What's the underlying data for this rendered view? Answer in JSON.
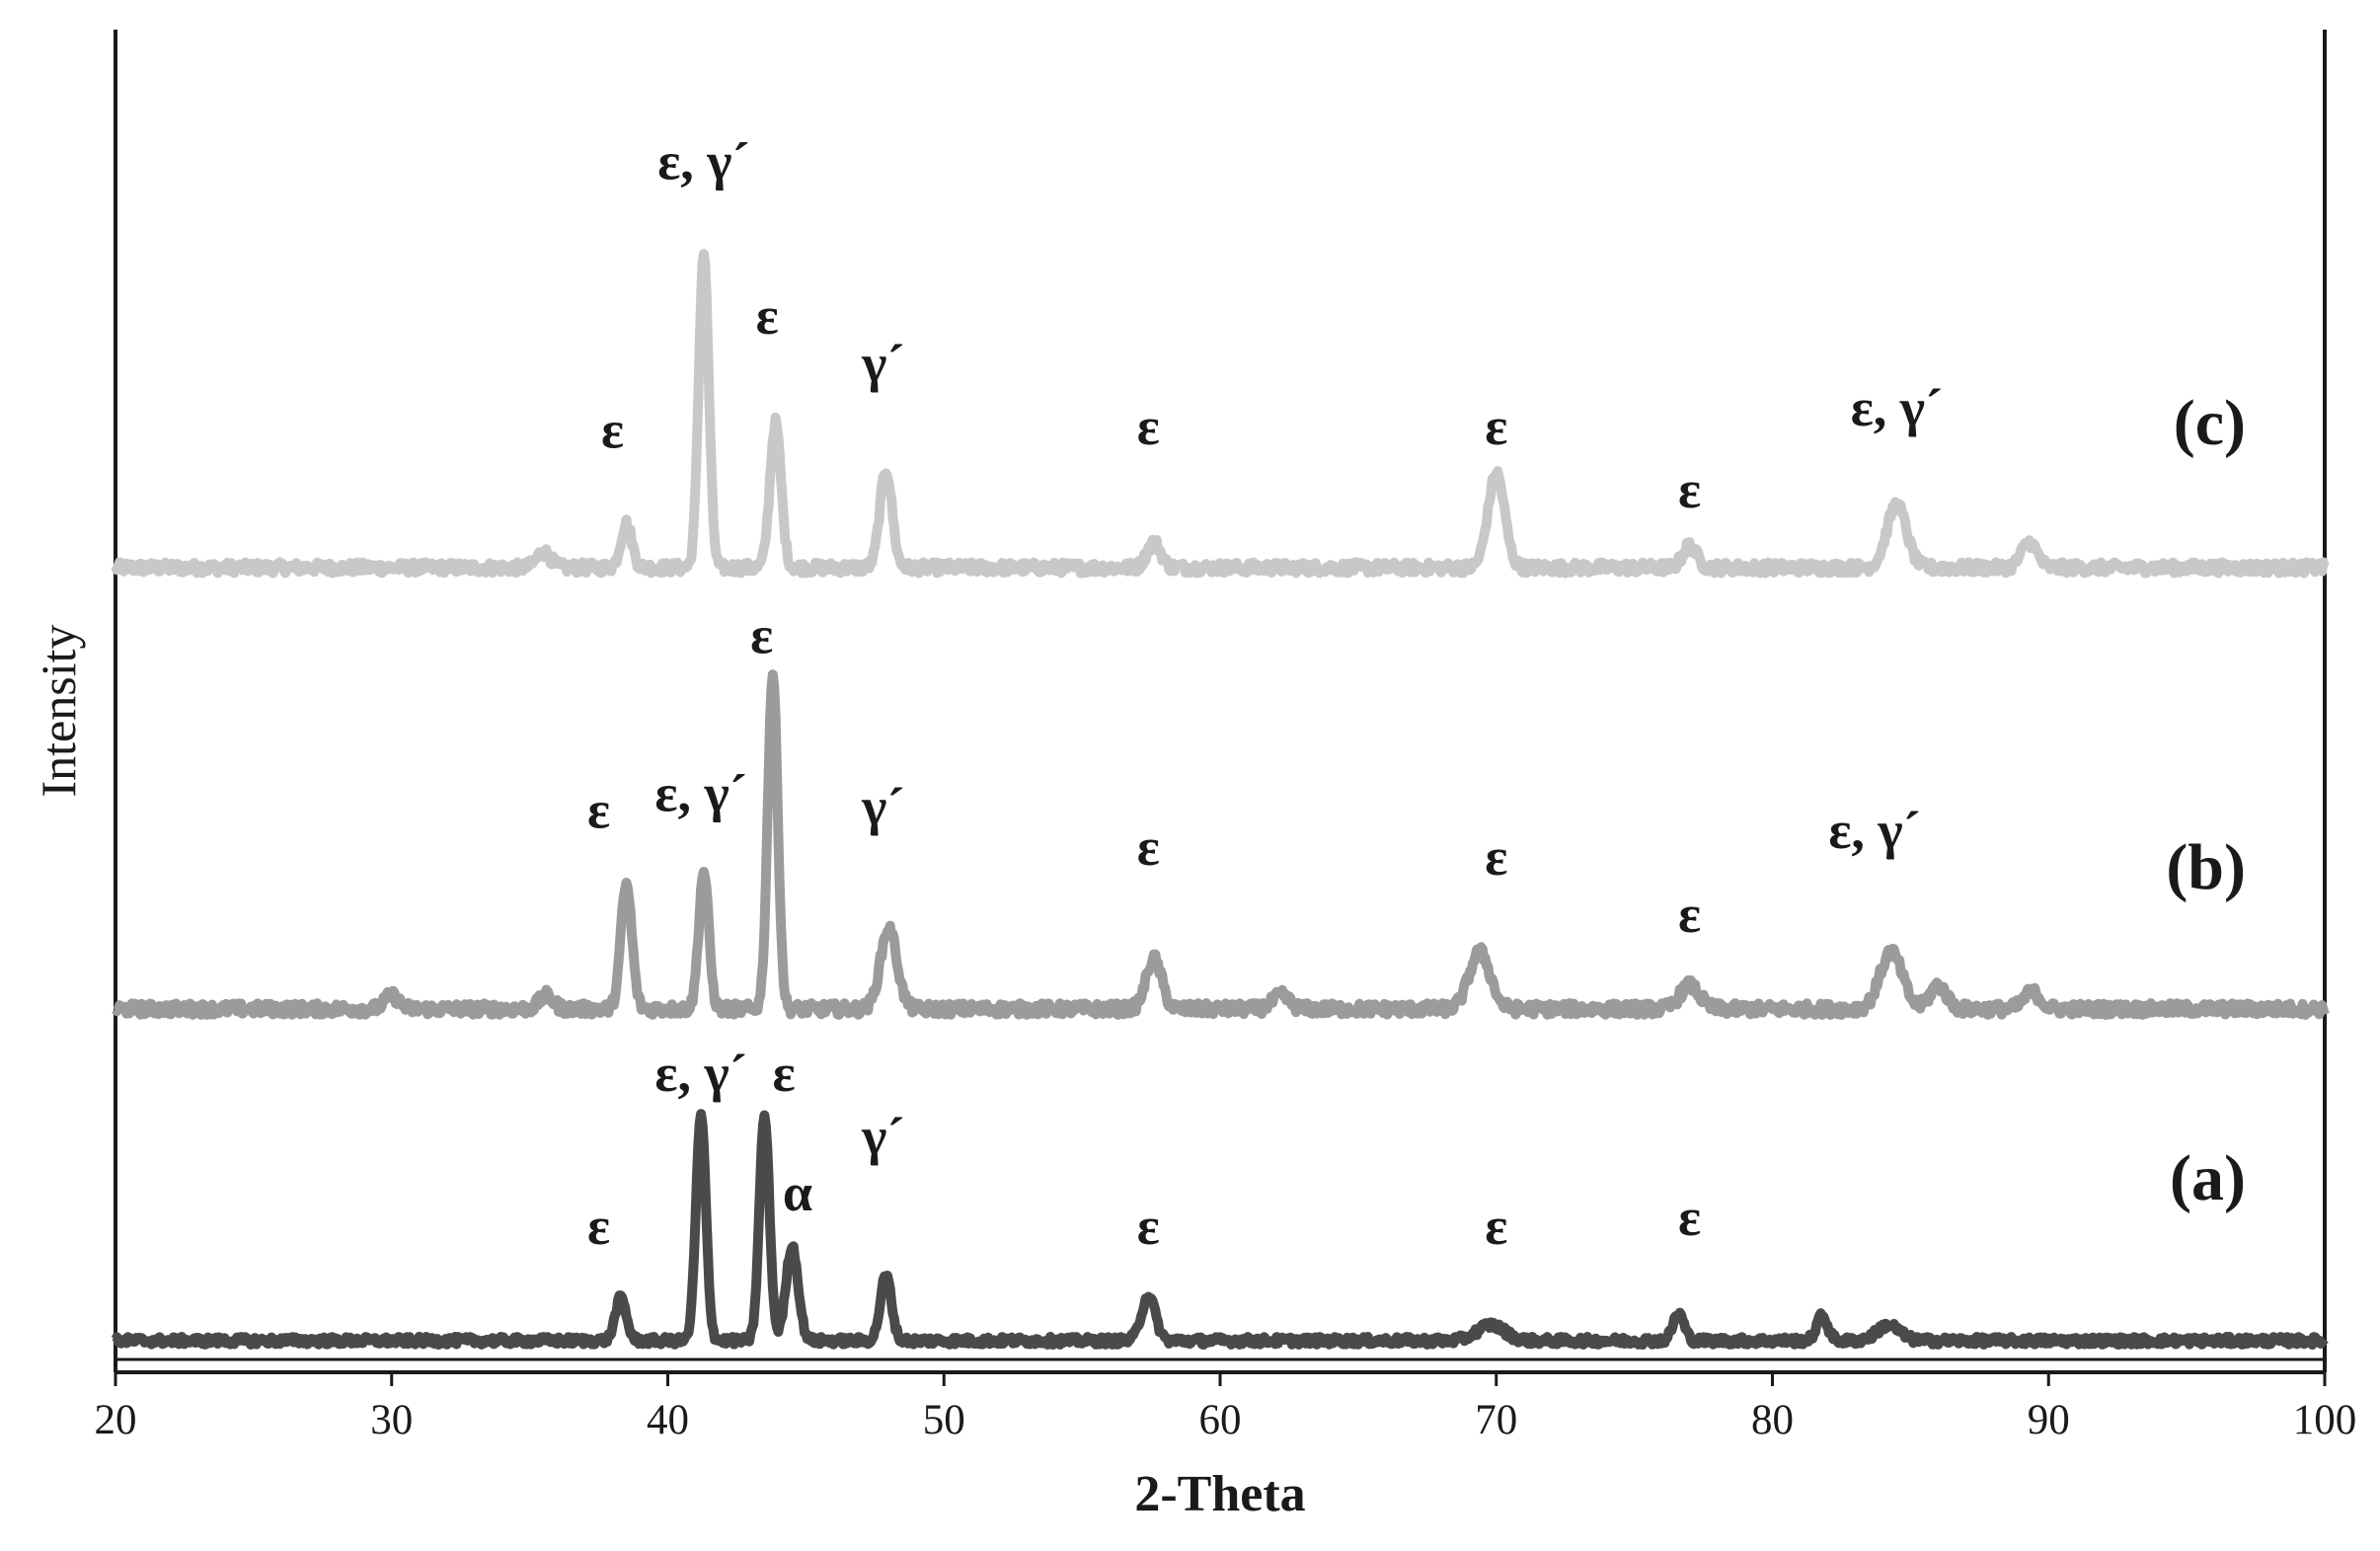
{
  "chart_data": {
    "type": "line",
    "xlabel": "2-Theta",
    "ylabel": "Intensity",
    "xlim": [
      20,
      100
    ],
    "xticks": [
      "20",
      "30",
      "40",
      "50",
      "60",
      "70",
      "80",
      "90",
      "100"
    ],
    "grid": false,
    "colors": {
      "c": "#c8c8c8",
      "b": "#9b9b9b",
      "a": "#4a4a4a",
      "axis": "#1a1a1a"
    },
    "series": [
      {
        "label": "(c)",
        "peaks": [
          {
            "x": 35.5,
            "h": 0.05,
            "w": 0.25
          },
          {
            "x": 38.5,
            "h": 0.14,
            "w": 0.2
          },
          {
            "x": 41.3,
            "h": 1.0,
            "w": 0.18
          },
          {
            "x": 43.9,
            "h": 0.46,
            "w": 0.2
          },
          {
            "x": 47.9,
            "h": 0.31,
            "w": 0.22
          },
          {
            "x": 57.6,
            "h": 0.08,
            "w": 0.25
          },
          {
            "x": 70.0,
            "h": 0.3,
            "w": 0.3
          },
          {
            "x": 77.0,
            "h": 0.07,
            "w": 0.25
          },
          {
            "x": 84.5,
            "h": 0.2,
            "w": 0.35
          },
          {
            "x": 89.3,
            "h": 0.08,
            "w": 0.28
          }
        ],
        "annotations": [
          {
            "text": "ε",
            "x": 38.0,
            "h": 0.38
          },
          {
            "text": "ε, γ´",
            "x": 41.3,
            "h": 1.23
          },
          {
            "text": "ε",
            "x": 43.6,
            "h": 0.74
          },
          {
            "text": "γ´",
            "x": 47.8,
            "h": 0.59
          },
          {
            "text": "ε",
            "x": 57.4,
            "h": 0.39
          },
          {
            "text": "ε",
            "x": 70.0,
            "h": 0.39
          },
          {
            "text": "ε",
            "x": 77.0,
            "h": 0.19
          },
          {
            "text": "ε, γ´",
            "x": 84.5,
            "h": 0.45
          }
        ]
      },
      {
        "label": "(b)",
        "peaks": [
          {
            "x": 30.0,
            "h": 0.04,
            "w": 0.25
          },
          {
            "x": 35.6,
            "h": 0.04,
            "w": 0.25
          },
          {
            "x": 38.5,
            "h": 0.37,
            "w": 0.2
          },
          {
            "x": 41.3,
            "h": 0.41,
            "w": 0.18
          },
          {
            "x": 43.8,
            "h": 1.0,
            "w": 0.18
          },
          {
            "x": 48.0,
            "h": 0.24,
            "w": 0.3
          },
          {
            "x": 57.6,
            "h": 0.15,
            "w": 0.28
          },
          {
            "x": 62.2,
            "h": 0.04,
            "w": 0.3
          },
          {
            "x": 69.4,
            "h": 0.17,
            "w": 0.38
          },
          {
            "x": 77.0,
            "h": 0.07,
            "w": 0.35
          },
          {
            "x": 84.3,
            "h": 0.17,
            "w": 0.4
          },
          {
            "x": 86.0,
            "h": 0.07,
            "w": 0.3
          },
          {
            "x": 89.4,
            "h": 0.05,
            "w": 0.3
          }
        ],
        "annotations": [
          {
            "text": "ε",
            "x": 37.5,
            "h": 0.54
          },
          {
            "text": "ε, γ´",
            "x": 41.2,
            "h": 0.59
          },
          {
            "text": "ε",
            "x": 43.4,
            "h": 1.06
          },
          {
            "text": "γ´",
            "x": 47.8,
            "h": 0.55
          },
          {
            "text": "ε",
            "x": 57.4,
            "h": 0.43
          },
          {
            "text": "ε",
            "x": 70.0,
            "h": 0.4
          },
          {
            "text": "ε",
            "x": 77.0,
            "h": 0.23
          },
          {
            "text": "ε, γ´",
            "x": 83.7,
            "h": 0.48
          }
        ]
      },
      {
        "label": "(a)",
        "peaks": [
          {
            "x": 38.3,
            "h": 0.19,
            "w": 0.2
          },
          {
            "x": 41.2,
            "h": 1.0,
            "w": 0.18
          },
          {
            "x": 43.5,
            "h": 1.0,
            "w": 0.18
          },
          {
            "x": 44.5,
            "h": 0.42,
            "w": 0.22
          },
          {
            "x": 47.9,
            "h": 0.29,
            "w": 0.2
          },
          {
            "x": 57.4,
            "h": 0.2,
            "w": 0.25
          },
          {
            "x": 69.8,
            "h": 0.07,
            "w": 0.5
          },
          {
            "x": 76.6,
            "h": 0.12,
            "w": 0.2
          },
          {
            "x": 81.8,
            "h": 0.11,
            "w": 0.2
          },
          {
            "x": 84.2,
            "h": 0.07,
            "w": 0.4
          }
        ],
        "annotations": [
          {
            "text": "ε",
            "x": 37.5,
            "h": 0.43
          },
          {
            "text": "ε, γ´",
            "x": 41.2,
            "h": 1.11
          },
          {
            "text": "ε",
            "x": 44.2,
            "h": 1.11
          },
          {
            "text": "α",
            "x": 44.7,
            "h": 0.58
          },
          {
            "text": "γ´",
            "x": 47.8,
            "h": 0.83
          },
          {
            "text": "ε",
            "x": 57.4,
            "h": 0.43
          },
          {
            "text": "ε",
            "x": 70.0,
            "h": 0.43
          },
          {
            "text": "ε",
            "x": 77.0,
            "h": 0.47
          }
        ]
      }
    ]
  }
}
